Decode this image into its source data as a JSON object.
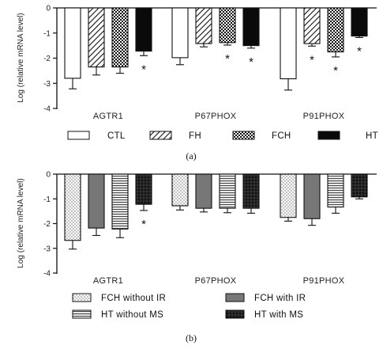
{
  "chart_data": [
    {
      "type": "bar",
      "panel_label": "(a)",
      "ylabel": "Log (relative mRNA level)",
      "ylim": [
        -4,
        0
      ],
      "yticks": [
        "0",
        "-1",
        "-2",
        "-3",
        "-4"
      ],
      "categories": [
        "AGTR1",
        "P67PHOX",
        "P91PHOX"
      ],
      "series": [
        {
          "name": "CTL",
          "values": [
            -2.8,
            -1.98,
            -2.82
          ],
          "errors": [
            0.42,
            0.28,
            0.45
          ]
        },
        {
          "name": "FH",
          "values": [
            -2.35,
            -1.42,
            -1.42
          ],
          "errors": [
            0.32,
            0.13,
            0.1
          ]
        },
        {
          "name": "FCH",
          "values": [
            -2.35,
            -1.38,
            -1.75
          ],
          "errors": [
            0.25,
            0.1,
            0.2
          ]
        },
        {
          "name": "HT",
          "values": [
            -1.72,
            -1.5,
            -1.12
          ],
          "errors": [
            0.18,
            0.1,
            0.06
          ]
        }
      ],
      "significance": [
        {
          "series": 3,
          "category": 0,
          "mark": "*"
        },
        {
          "series": 2,
          "category": 1,
          "mark": "*"
        },
        {
          "series": 3,
          "category": 1,
          "mark": "*"
        },
        {
          "series": 1,
          "category": 2,
          "mark": "*"
        },
        {
          "series": 2,
          "category": 2,
          "mark": "*"
        },
        {
          "series": 3,
          "category": 2,
          "mark": "*"
        }
      ]
    },
    {
      "type": "bar",
      "panel_label": "(b)",
      "ylabel": "Log (relative mRNA level)",
      "ylim": [
        -4,
        0
      ],
      "yticks": [
        "0",
        "-1",
        "-2",
        "-3",
        "-4"
      ],
      "categories": [
        "AGTR1",
        "P67PHOX",
        "P91PHOX"
      ],
      "series": [
        {
          "name": "FCH without IR",
          "values": [
            -2.68,
            -1.28,
            -1.75
          ],
          "errors": [
            0.35,
            0.17,
            0.15
          ]
        },
        {
          "name": "FCH with IR",
          "values": [
            -2.18,
            -1.38,
            -1.8
          ],
          "errors": [
            0.3,
            0.15,
            0.27
          ]
        },
        {
          "name": "HT without MS",
          "values": [
            -2.22,
            -1.38,
            -1.33
          ],
          "errors": [
            0.35,
            0.18,
            0.25
          ]
        },
        {
          "name": "HT with MS",
          "values": [
            -1.22,
            -1.38,
            -0.92
          ],
          "errors": [
            0.25,
            0.2,
            0.08
          ]
        }
      ],
      "significance": [
        {
          "series": 3,
          "category": 0,
          "mark": "*"
        }
      ]
    }
  ]
}
